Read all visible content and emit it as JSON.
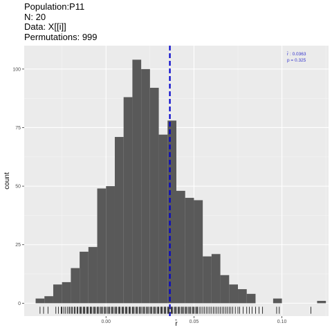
{
  "chart_data": {
    "type": "bar",
    "title_lines": [
      "Population:P11",
      "N: 20",
      "Data: X[[i]]",
      "Permutations: 999"
    ],
    "xlabel": "r̄",
    "ylabel": "count",
    "xlim": [
      -0.0465,
      0.1265
    ],
    "ylim": [
      -5.5,
      110
    ],
    "x_ticks": [
      0.0,
      0.05,
      0.1
    ],
    "x_tick_labels": [
      "0.00",
      "0.05",
      "0.10"
    ],
    "y_ticks": [
      0,
      25,
      50,
      75,
      100
    ],
    "y_tick_labels": [
      "0",
      "25",
      "50",
      "75",
      "100"
    ],
    "bin_width": 0.005,
    "bin_start": -0.04,
    "values": [
      2,
      3,
      8,
      9,
      15,
      22,
      24,
      49,
      50,
      71,
      88,
      104,
      100,
      92,
      72,
      78,
      48,
      45,
      44,
      20,
      21,
      12,
      8,
      6,
      4,
      0,
      0,
      2,
      0,
      0,
      0,
      0,
      1
    ],
    "observed_value": 0.0363,
    "observed_line_color": "#0000cc",
    "annotation_lines": [
      "r̄ : 0.0363",
      "p = 0.325"
    ],
    "annotation_color": "#3333cc",
    "bar_color": "#595959",
    "panel_color": "#ebebeb",
    "grid": true,
    "rug_ticks": [
      -0.0375,
      -0.0355,
      -0.033,
      -0.0285,
      -0.027,
      -0.0255,
      -0.025,
      -0.024,
      -0.023,
      -0.022,
      -0.021,
      -0.0205,
      -0.0195,
      -0.019,
      -0.018,
      -0.0175,
      -0.0165,
      -0.016,
      -0.015,
      -0.0145,
      -0.014,
      -0.013,
      -0.0125,
      -0.012,
      -0.011,
      -0.0105,
      -0.01,
      -0.009,
      -0.0085,
      -0.008,
      -0.007,
      -0.0065,
      -0.006,
      -0.005,
      -0.0045,
      -0.004,
      -0.003,
      -0.0025,
      -0.002,
      -0.001,
      -0.0005,
      0.0,
      0.001,
      0.0015,
      0.002,
      0.003,
      0.0035,
      0.004,
      0.005,
      0.0055,
      0.006,
      0.007,
      0.0075,
      0.008,
      0.009,
      0.0095,
      0.01,
      0.011,
      0.0115,
      0.012,
      0.013,
      0.0135,
      0.014,
      0.015,
      0.0155,
      0.016,
      0.017,
      0.0175,
      0.018,
      0.019,
      0.0195,
      0.02,
      0.021,
      0.0215,
      0.022,
      0.023,
      0.0235,
      0.024,
      0.025,
      0.0255,
      0.026,
      0.027,
      0.0275,
      0.028,
      0.029,
      0.0295,
      0.03,
      0.031,
      0.0315,
      0.032,
      0.033,
      0.0335,
      0.034,
      0.035,
      0.0355,
      0.036,
      0.037,
      0.0375,
      0.038,
      0.039,
      0.0395,
      0.04,
      0.041,
      0.0415,
      0.042,
      0.043,
      0.0435,
      0.044,
      0.045,
      0.0455,
      0.046,
      0.047,
      0.0475,
      0.048,
      0.049,
      0.0495,
      0.05,
      0.051,
      0.0515,
      0.052,
      0.053,
      0.054,
      0.055,
      0.056,
      0.057,
      0.058,
      0.059,
      0.06,
      0.061,
      0.062,
      0.063,
      0.064,
      0.065,
      0.066,
      0.067,
      0.068,
      0.069,
      0.07,
      0.071,
      0.072,
      0.0735,
      0.075,
      0.076,
      0.078,
      0.08,
      0.0815,
      0.083,
      0.085,
      0.087,
      0.089,
      0.097,
      0.0985,
      0.1165
    ]
  }
}
